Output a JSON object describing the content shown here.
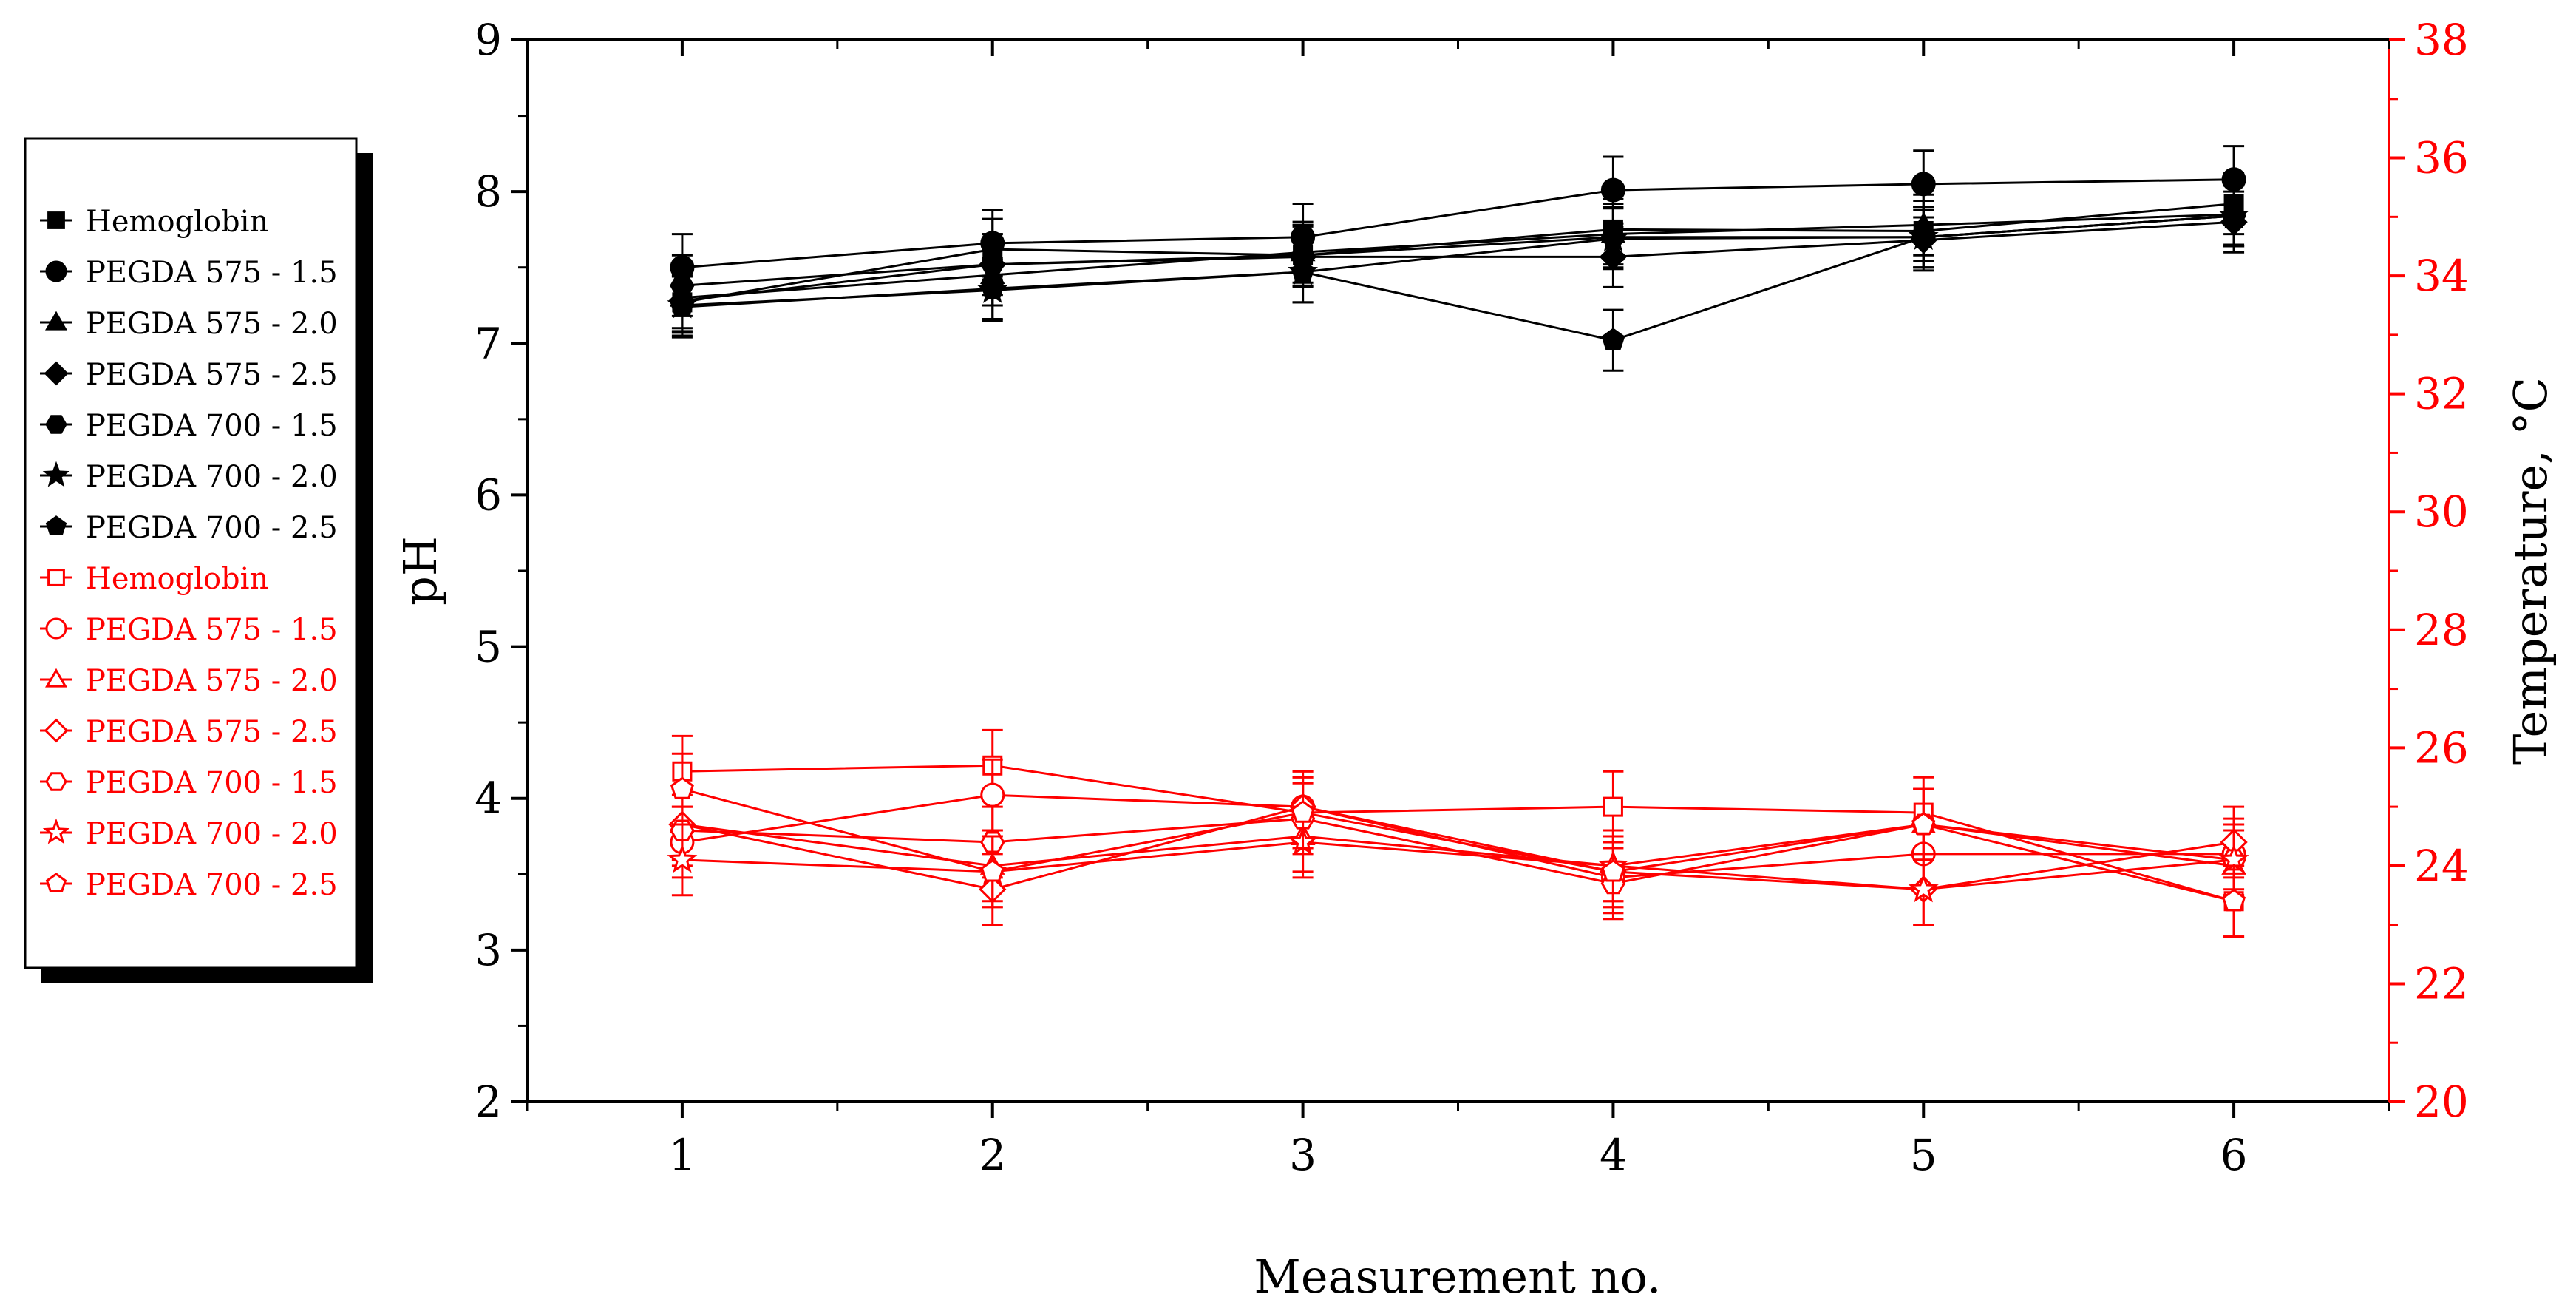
{
  "chart_data": {
    "type": "line",
    "title": "",
    "xlabel": "Measurement no.",
    "ylabel_left": "pH",
    "ylabel_right": "Temperature, °C",
    "x": [
      1,
      2,
      3,
      4,
      5,
      6
    ],
    "xlim": [
      0.5,
      6.5
    ],
    "ylim_left": [
      2,
      9
    ],
    "ylim_right": [
      20,
      38
    ],
    "x_ticks": [
      "1",
      "2",
      "3",
      "4",
      "5",
      "6"
    ],
    "y_left_ticks": [
      "2",
      "3",
      "4",
      "5",
      "6",
      "7",
      "8",
      "9"
    ],
    "y_right_ticks": [
      "20",
      "22",
      "24",
      "26",
      "28",
      "30",
      "32",
      "34",
      "36",
      "38"
    ],
    "colors": {
      "ph": "#000000",
      "temperature": "#ff0000"
    },
    "legend_position": "left",
    "ph_series": [
      {
        "name": "Hemoglobin",
        "marker": "square",
        "values": [
          7.27,
          7.62,
          7.58,
          7.75,
          7.74,
          7.92
        ],
        "err": [
          0.2,
          0.2,
          0.2,
          0.2,
          0.2,
          0.2
        ]
      },
      {
        "name": "PEGDA 575 - 1.5",
        "marker": "circle",
        "values": [
          7.5,
          7.66,
          7.7,
          8.01,
          8.05,
          8.08
        ],
        "err": [
          0.22,
          0.22,
          0.22,
          0.22,
          0.22,
          0.22
        ]
      },
      {
        "name": "PEGDA 575 - 2.0",
        "marker": "triangle",
        "values": [
          7.3,
          7.45,
          7.6,
          7.72,
          7.78,
          7.85
        ],
        "err": [
          0.2,
          0.2,
          0.2,
          0.2,
          0.2,
          0.2
        ]
      },
      {
        "name": "PEGDA 575 - 2.5",
        "marker": "diamond",
        "values": [
          7.28,
          7.52,
          7.57,
          7.57,
          7.68,
          7.8
        ],
        "err": [
          0.2,
          0.2,
          0.2,
          0.2,
          0.2,
          0.2
        ]
      },
      {
        "name": "PEGDA 700 - 1.5",
        "marker": "hexagon",
        "values": [
          7.38,
          7.52,
          7.58,
          7.7,
          7.7,
          7.84
        ],
        "err": [
          0.2,
          0.2,
          0.2,
          0.2,
          0.2,
          0.2
        ]
      },
      {
        "name": "PEGDA 700 - 2.0",
        "marker": "star",
        "values": [
          7.25,
          7.35,
          7.47,
          7.69,
          7.7,
          7.84
        ],
        "err": [
          0.2,
          0.2,
          0.2,
          0.2,
          0.2,
          0.2
        ]
      },
      {
        "name": "PEGDA 700 - 2.5",
        "marker": "pentagon",
        "values": [
          7.24,
          7.36,
          7.47,
          7.02,
          7.7,
          7.84
        ],
        "err": [
          0.2,
          0.2,
          0.2,
          0.2,
          0.2,
          0.2
        ]
      }
    ],
    "temperature_series": [
      {
        "name": "Hemoglobin",
        "marker": "square",
        "values": [
          25.6,
          25.7,
          24.9,
          25.0,
          24.9,
          23.4
        ],
        "err": [
          0.6,
          0.6,
          0.6,
          0.6,
          0.6,
          0.6
        ]
      },
      {
        "name": "PEGDA 575 - 1.5",
        "marker": "circle",
        "values": [
          24.4,
          25.2,
          25.0,
          23.8,
          24.2,
          24.2
        ],
        "err": [
          0.6,
          0.6,
          0.6,
          0.6,
          0.6,
          0.6
        ]
      },
      {
        "name": "PEGDA 575 - 2.0",
        "marker": "triangle",
        "values": [
          24.7,
          24.0,
          24.5,
          24.0,
          24.7,
          24.0
        ],
        "err": [
          0.6,
          0.6,
          0.6,
          0.6,
          0.6,
          0.6
        ]
      },
      {
        "name": "PEGDA 575 - 2.5",
        "marker": "diamond",
        "values": [
          24.7,
          23.6,
          25.0,
          23.9,
          23.6,
          24.4
        ],
        "err": [
          0.6,
          0.6,
          0.6,
          0.6,
          0.6,
          0.6
        ]
      },
      {
        "name": "PEGDA 700 - 1.5",
        "marker": "hexagon",
        "values": [
          24.6,
          24.4,
          24.8,
          23.7,
          24.7,
          24.1
        ],
        "err": [
          0.6,
          0.6,
          0.6,
          0.6,
          0.6,
          0.6
        ]
      },
      {
        "name": "PEGDA 700 - 2.0",
        "marker": "star",
        "values": [
          24.1,
          23.9,
          24.4,
          24.0,
          23.6,
          24.1
        ],
        "err": [
          0.6,
          0.6,
          0.6,
          0.6,
          0.6,
          0.6
        ]
      },
      {
        "name": "PEGDA 700 - 2.5",
        "marker": "pentagon",
        "values": [
          25.3,
          23.9,
          24.9,
          23.9,
          24.7,
          23.4
        ],
        "err": [
          0.6,
          0.6,
          0.6,
          0.6,
          0.6,
          0.6
        ]
      }
    ]
  }
}
